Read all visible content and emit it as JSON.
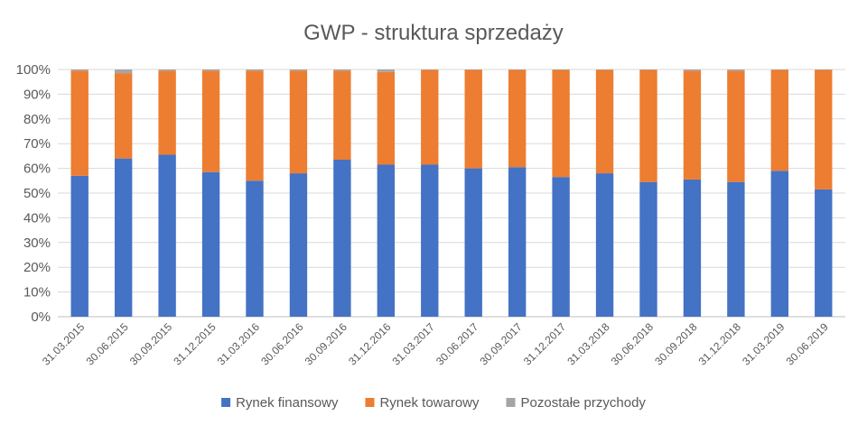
{
  "chart_data": {
    "type": "bar",
    "stacked": true,
    "title": "GWP - struktura sprzedaży",
    "categories": [
      "31.03.2015",
      "30.06.2015",
      "30.09.2015",
      "31.12.2015",
      "31.03.2016",
      "30.06.2016",
      "30.09.2016",
      "31.12.2016",
      "31.03.2017",
      "30.06.2017",
      "30.09.2017",
      "31.12.2017",
      "31.03.2018",
      "30.06.2018",
      "30.09.2018",
      "31.12.2018",
      "31.03.2019",
      "30.06.2019"
    ],
    "series": [
      {
        "name": "Rynek finansowy",
        "color": "#4472C4",
        "values": [
          0.57,
          0.64,
          0.655,
          0.585,
          0.55,
          0.58,
          0.635,
          0.615,
          0.615,
          0.6,
          0.605,
          0.565,
          0.58,
          0.545,
          0.555,
          0.545,
          0.59,
          0.515
        ]
      },
      {
        "name": "Rynek towarowy",
        "color": "#ED7D31",
        "values": [
          0.425,
          0.345,
          0.34,
          0.41,
          0.445,
          0.415,
          0.36,
          0.375,
          0.383,
          0.398,
          0.393,
          0.433,
          0.418,
          0.453,
          0.44,
          0.45,
          0.408,
          0.483
        ]
      },
      {
        "name": "Pozostałe przychody",
        "color": "#A5A5A5",
        "values": [
          0.005,
          0.015,
          0.005,
          0.005,
          0.005,
          0.005,
          0.005,
          0.01,
          0.002,
          0.002,
          0.002,
          0.002,
          0.002,
          0.002,
          0.005,
          0.005,
          0.002,
          0.002
        ]
      }
    ],
    "ylim": [
      0,
      1
    ],
    "yticks": [
      "0%",
      "10%",
      "20%",
      "30%",
      "40%",
      "50%",
      "60%",
      "70%",
      "80%",
      "90%",
      "100%"
    ],
    "grid": true,
    "legend_position": "bottom"
  }
}
